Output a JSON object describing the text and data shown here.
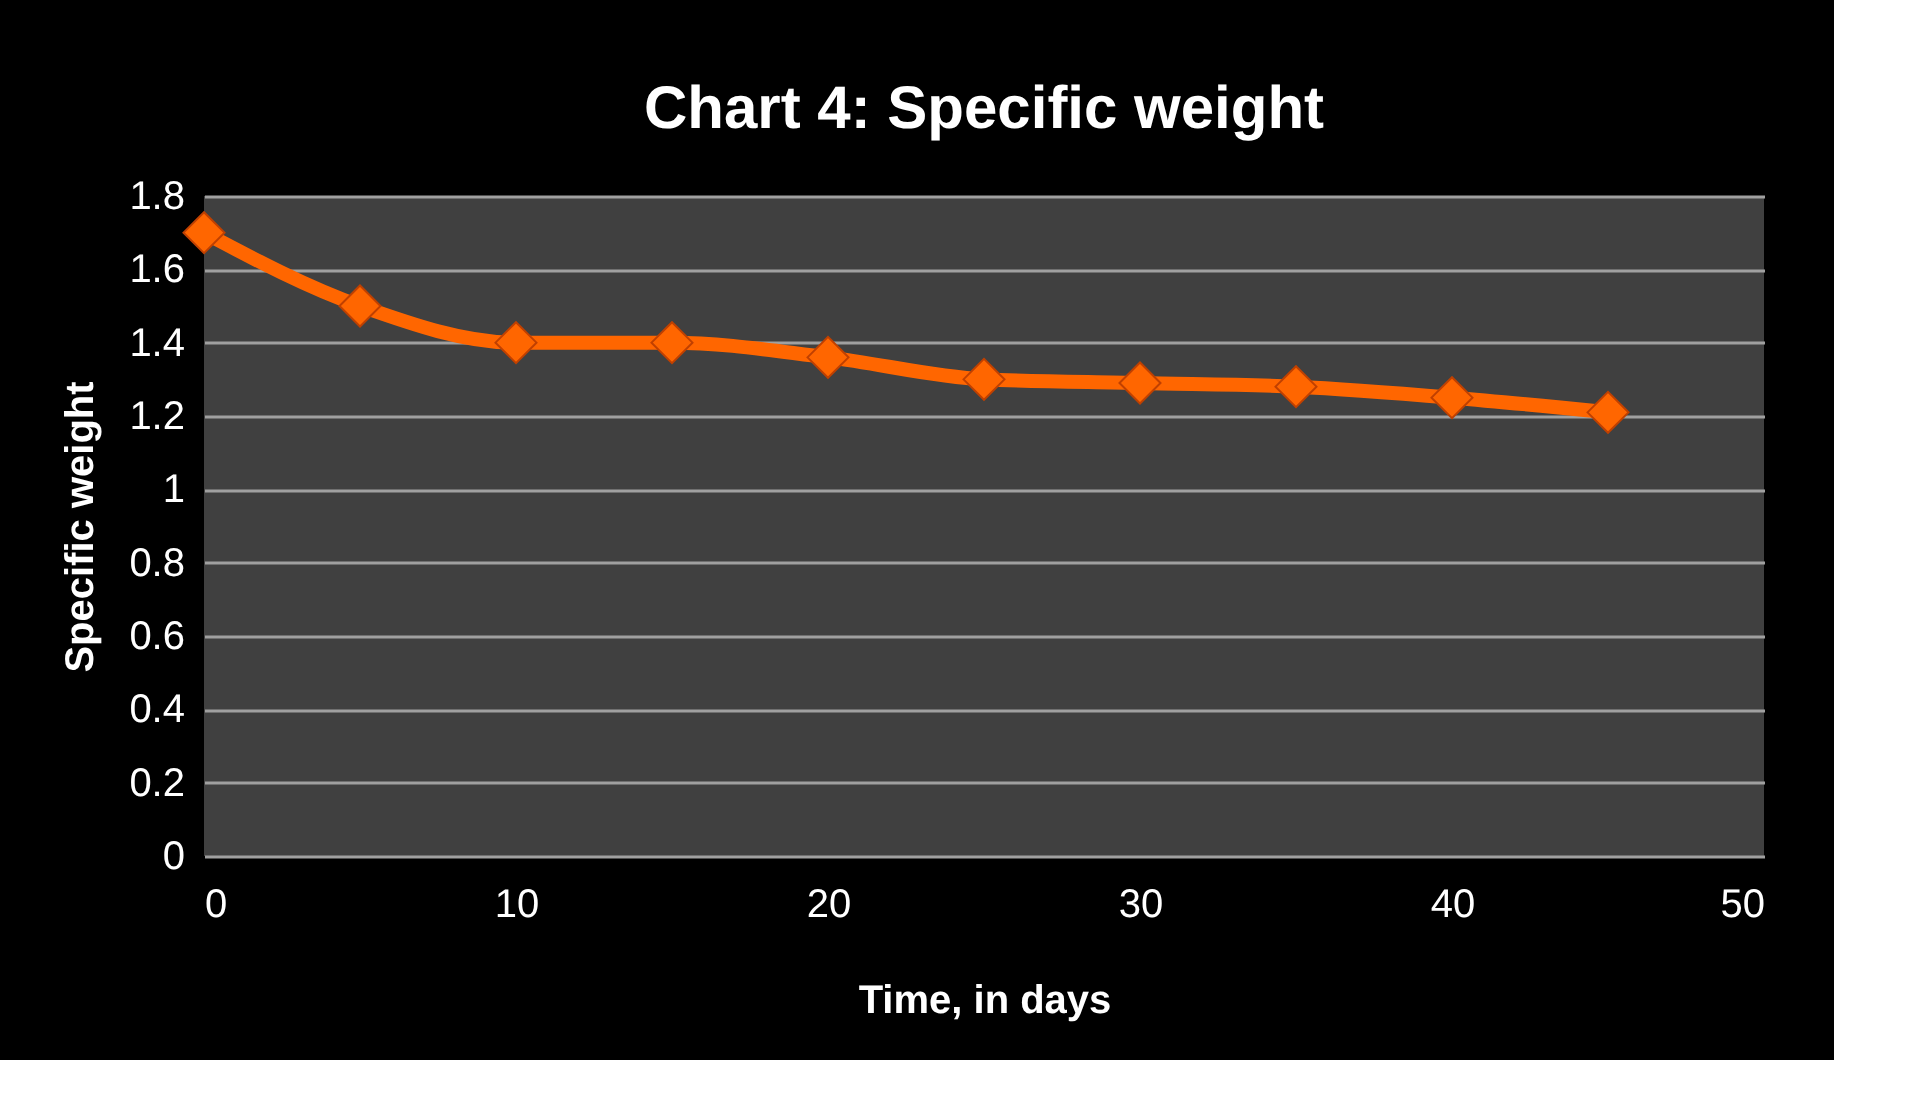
{
  "chart_data": {
    "type": "line",
    "title": "Chart  4: Specific weight",
    "xlabel": "Time, in days",
    "ylabel": "Specific weight",
    "x": [
      0,
      5,
      10,
      15,
      20,
      25,
      30,
      35,
      40,
      45
    ],
    "series": [
      {
        "color": "#ff6600",
        "values": [
          1.7,
          1.5,
          1.4,
          1.4,
          1.36,
          1.3,
          1.29,
          1.28,
          1.25,
          1.21
        ]
      }
    ],
    "xlim": [
      0,
      50
    ],
    "xticks": [
      0,
      10,
      20,
      30,
      40,
      50
    ],
    "ylim": [
      0,
      1.8
    ],
    "yticks": [
      0,
      0.2,
      0.4,
      0.6,
      0.8,
      1,
      1.2,
      1.4,
      1.6,
      1.8
    ],
    "grid": "y",
    "legend": false,
    "marker": "diamond",
    "line_style": "solid"
  }
}
